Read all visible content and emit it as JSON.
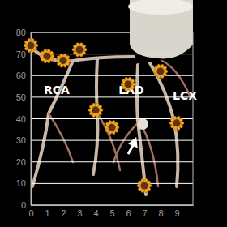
{
  "chart_data": {
    "type": "scatter",
    "x": [
      0,
      1,
      2,
      3,
      4,
      5,
      6,
      7,
      8,
      9
    ],
    "values": [
      74,
      69,
      67,
      72,
      44,
      36,
      56,
      9,
      62,
      38
    ],
    "color": "#f5a623",
    "marker": "flower",
    "xlim": [
      0,
      10
    ],
    "ylim": [
      0,
      80
    ],
    "xticks": [
      0,
      1,
      2,
      3,
      4,
      5,
      6,
      7,
      8,
      9
    ],
    "yticks": [
      0,
      10,
      20,
      30,
      40,
      50,
      60,
      70,
      80
    ],
    "grid": true,
    "annotations": [
      "RCA",
      "LAD",
      "LCX"
    ]
  }
}
